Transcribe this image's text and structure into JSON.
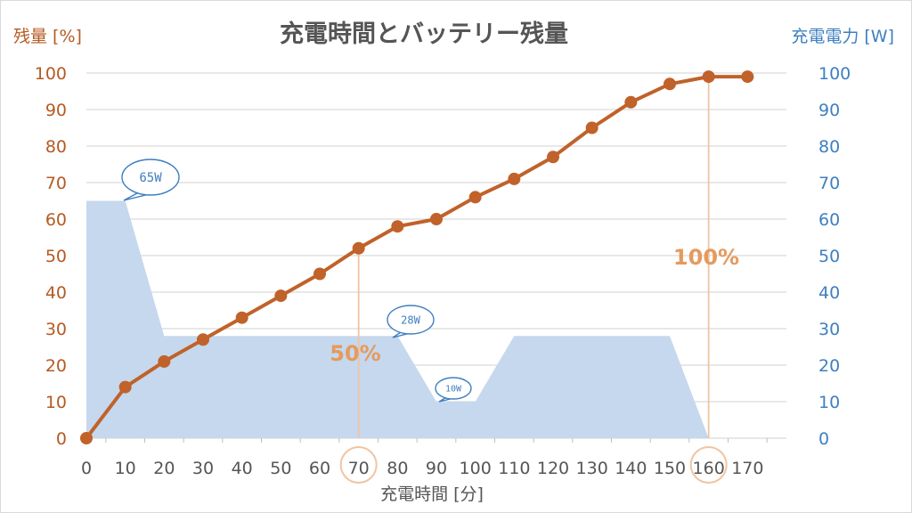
{
  "chart_data": {
    "type": "line+area",
    "title": "充電時間とバッテリー残量",
    "xlabel": "充電時間 [分]",
    "ylabel_left": "残量 [%]",
    "ylabel_right": "充電電力 [W]",
    "x_ticks": [
      "0",
      "10",
      "20",
      "30",
      "40",
      "50",
      "60",
      "70",
      "80",
      "90",
      "100",
      "110",
      "120",
      "130",
      "140",
      "150",
      "160",
      "170"
    ],
    "xlim": [
      0,
      180
    ],
    "ylim_left": [
      0,
      100
    ],
    "ylim_right": [
      0,
      100
    ],
    "y_ticks": [
      "0",
      "10",
      "20",
      "30",
      "40",
      "50",
      "60",
      "70",
      "80",
      "90",
      "100"
    ],
    "grid": true,
    "battery_series": {
      "color": "#c0622a",
      "x": [
        0,
        10,
        20,
        30,
        40,
        50,
        60,
        70,
        80,
        90,
        100,
        110,
        120,
        130,
        140,
        150,
        160,
        170
      ],
      "y": [
        0,
        14,
        21,
        27,
        33,
        39,
        45,
        52,
        58,
        60,
        66,
        71,
        77,
        85,
        92,
        97,
        99,
        99
      ]
    },
    "power_series": {
      "color": "#c5d8ee",
      "x": [
        0,
        10,
        20,
        80,
        90,
        100,
        110,
        150,
        160
      ],
      "y": [
        65,
        65,
        28,
        28,
        10,
        10,
        28,
        28,
        0
      ]
    },
    "annotations": {
      "bubble_65": "65W",
      "bubble_28": "28W",
      "bubble_10": "10W",
      "callout_50": "50%",
      "callout_100": "100%"
    },
    "highlight_x": [
      70,
      160
    ],
    "highlight_color": "#f0c4a3"
  }
}
